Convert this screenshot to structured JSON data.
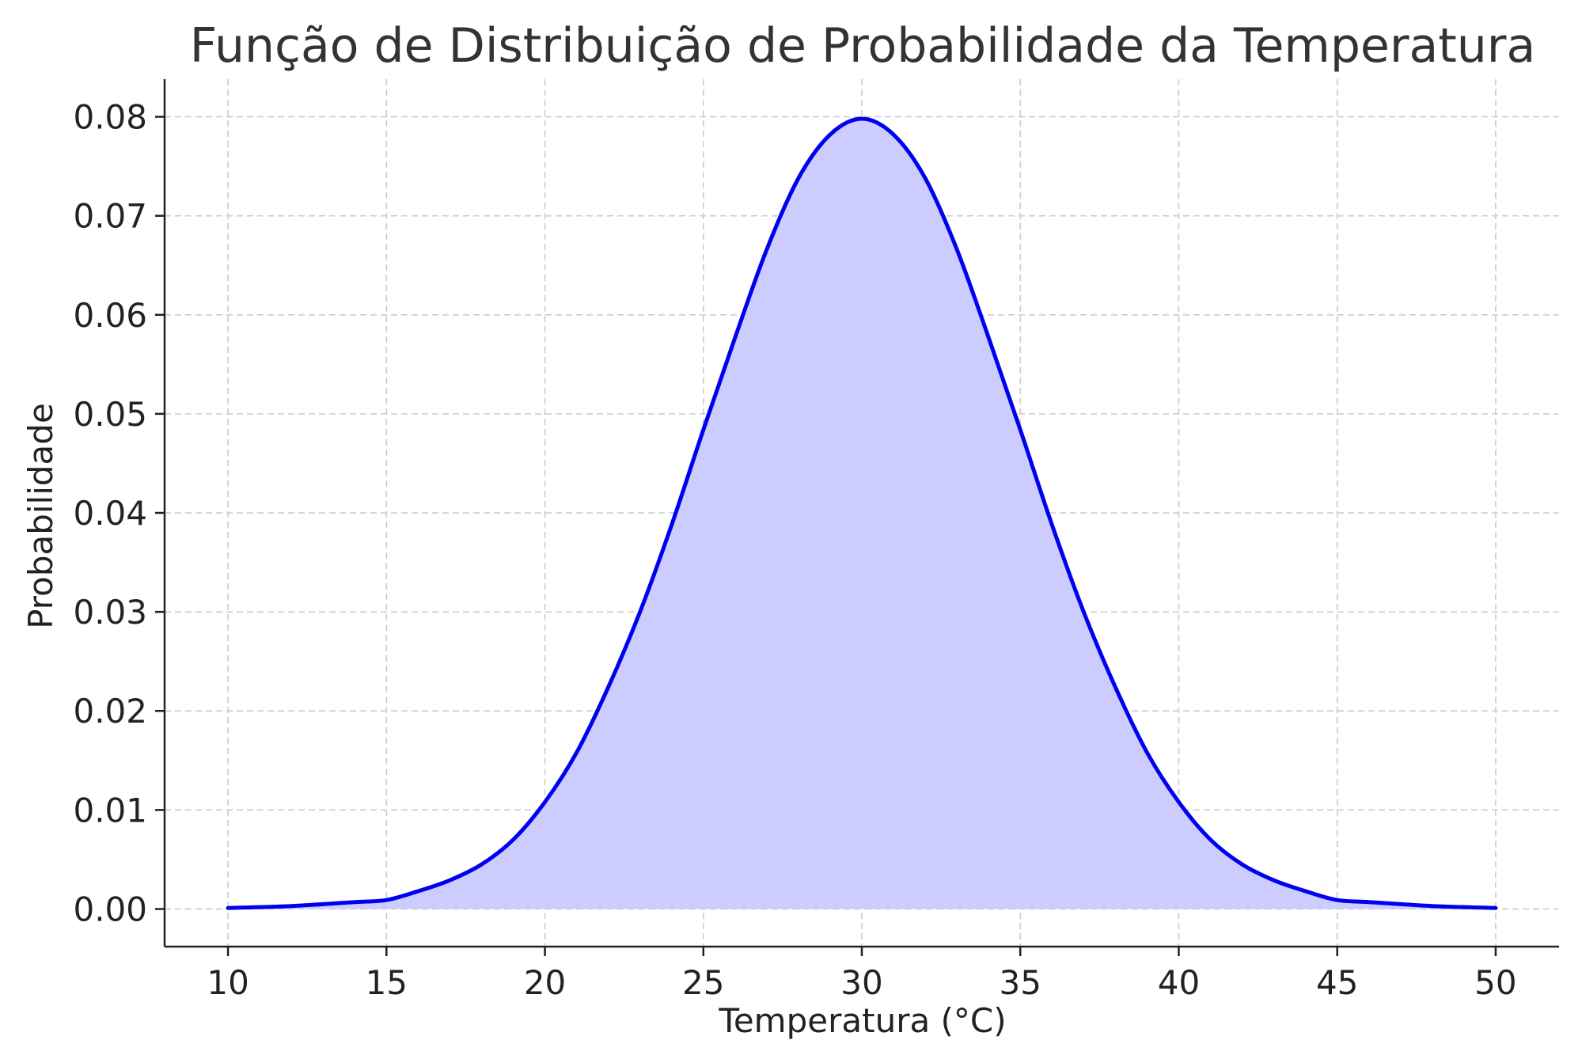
{
  "chart_data": {
    "type": "area",
    "title": "Função de Distribuição de Probabilidade da Temperatura",
    "xlabel": "Temperatura (°C)",
    "ylabel": "Probabilidade",
    "xlim": [
      8,
      52
    ],
    "ylim": [
      -0.0038,
      0.0838
    ],
    "xticks": [
      10,
      15,
      20,
      25,
      30,
      35,
      40,
      45,
      50
    ],
    "yticks": [
      0.0,
      0.01,
      0.02,
      0.03,
      0.04,
      0.05,
      0.06,
      0.07,
      0.08
    ],
    "xtick_labels": [
      "10",
      "15",
      "20",
      "25",
      "30",
      "35",
      "40",
      "45",
      "50"
    ],
    "ytick_labels": [
      "0.00",
      "0.01",
      "0.02",
      "0.03",
      "0.04",
      "0.05",
      "0.06",
      "0.07",
      "0.08"
    ],
    "grid": true,
    "series": [
      {
        "x": [
          10,
          12,
          14,
          15,
          16,
          17,
          18,
          19,
          20,
          21,
          22,
          23,
          24,
          25,
          26,
          27,
          28,
          29,
          30,
          31,
          32,
          33,
          34,
          35,
          36,
          37,
          38,
          39,
          40,
          41,
          42,
          43,
          44,
          45,
          46,
          48,
          50
        ],
        "y": [
          0.0001,
          0.0003,
          0.0007,
          0.0009,
          0.0018,
          0.0029,
          0.0045,
          0.007,
          0.0108,
          0.0158,
          0.0224,
          0.03,
          0.0388,
          0.0484,
          0.0577,
          0.0666,
          0.0738,
          0.0782,
          0.0798,
          0.0782,
          0.0738,
          0.0666,
          0.0577,
          0.0484,
          0.0388,
          0.03,
          0.0224,
          0.0158,
          0.0108,
          0.007,
          0.0045,
          0.0029,
          0.0018,
          0.0009,
          0.0007,
          0.0003,
          0.0001
        ],
        "color": "#0000ee",
        "fill_color": "#ccccff"
      }
    ]
  }
}
